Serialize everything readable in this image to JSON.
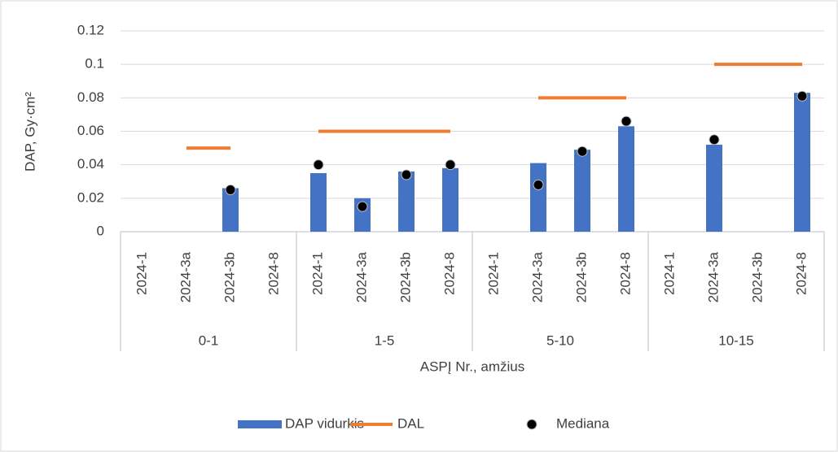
{
  "chart_data": {
    "type": "bar",
    "y_label": "DAP,  Gy·cm²",
    "x_label": "ASPĮ Nr., amžius",
    "groups": [
      "0-1",
      "1-5",
      "5-10",
      "10-15"
    ],
    "categories": [
      "2024-1",
      "2024-3a",
      "2024-3b",
      "2024-8",
      "2024-1",
      "2024-3a",
      "2024-3b",
      "2024-8",
      "2024-1",
      "2024-3a",
      "2024-3b",
      "2024-8",
      "2024-1",
      "2024-3a",
      "2024-3b",
      "2024-8"
    ],
    "series": [
      {
        "name": "DAP vidurkis",
        "type": "bar",
        "color": "#4472c4",
        "values": [
          null,
          null,
          0.026,
          null,
          0.035,
          0.02,
          0.036,
          0.038,
          null,
          0.041,
          0.049,
          0.063,
          null,
          0.052,
          null,
          0.083
        ]
      },
      {
        "name": "DAL",
        "type": "line",
        "color": "#ed7d31",
        "values": [
          null,
          0.05,
          0.05,
          null,
          0.06,
          0.06,
          0.06,
          0.06,
          null,
          0.08,
          0.08,
          0.08,
          null,
          0.1,
          0.1,
          0.1
        ]
      },
      {
        "name": "Mediana",
        "type": "scatter",
        "color": "#000000",
        "values": [
          null,
          null,
          0.025,
          null,
          0.04,
          0.015,
          0.034,
          0.04,
          null,
          0.028,
          0.048,
          0.066,
          null,
          0.055,
          null,
          0.081
        ]
      }
    ],
    "ylim": [
      0,
      0.12
    ],
    "yticks": [
      0,
      0.02,
      0.04,
      0.06,
      0.08,
      0.1,
      0.12
    ],
    "grid": true,
    "legend": "bottom"
  }
}
